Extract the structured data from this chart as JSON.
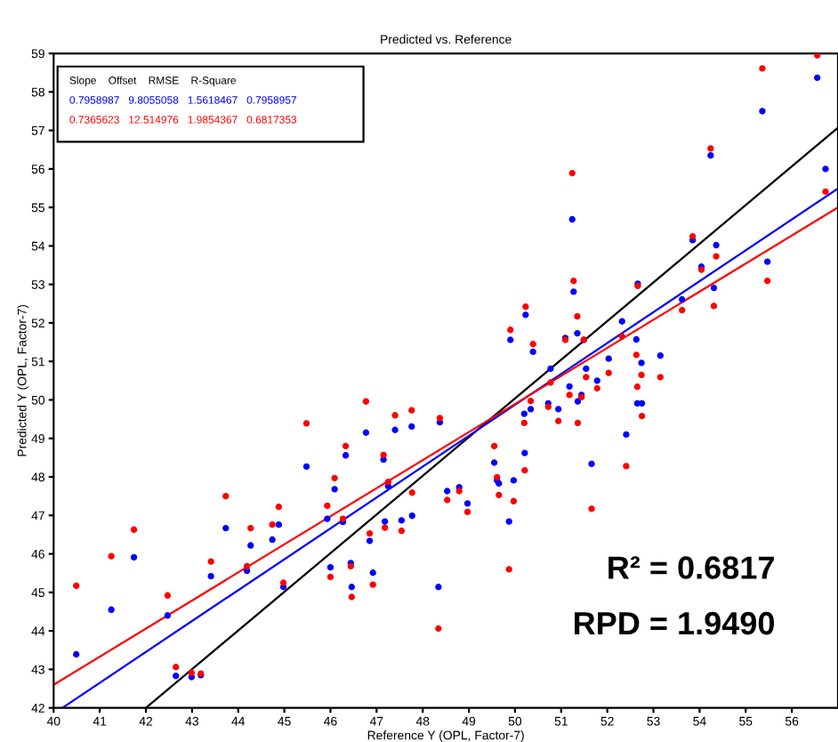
{
  "chart_data": {
    "type": "scatter",
    "title": "Predicted vs. Reference",
    "xlabel": "Reference Y (OPL, Factor-7)",
    "ylabel": "Predicted Y (OPL, Factor-7)",
    "xlim": [
      40,
      57
    ],
    "ylim": [
      42,
      59
    ],
    "xticks": [
      40,
      41,
      42,
      43,
      44,
      45,
      46,
      47,
      48,
      49,
      50,
      51,
      52,
      53,
      54,
      55,
      56
    ],
    "yticks": [
      42,
      43,
      44,
      45,
      46,
      47,
      48,
      49,
      50,
      51,
      52,
      53,
      54,
      55,
      56,
      57,
      58,
      59
    ],
    "grid": false,
    "legend": false,
    "x": [
      40.49,
      41.25,
      41.74,
      42.47,
      42.65,
      42.99,
      43.19,
      43.41,
      43.73,
      44.19,
      44.27,
      44.74,
      44.88,
      44.98,
      45.48,
      45.93,
      46.0,
      46.09,
      46.27,
      46.33,
      46.44,
      46.46,
      46.77,
      46.85,
      46.92,
      47.15,
      47.25,
      47.4,
      47.18,
      47.54,
      47.76,
      47.77,
      48.34,
      48.37,
      48.53,
      48.79,
      48.97,
      49.55,
      49.61,
      49.65,
      49.87,
      49.97,
      49.9,
      50.2,
      50.21,
      50.23,
      50.34,
      50.39,
      50.72,
      50.77,
      50.94,
      51.09,
      51.18,
      51.24,
      51.27,
      51.35,
      51.36,
      51.44,
      51.49,
      51.54,
      51.66,
      51.78,
      52.03,
      52.32,
      52.41,
      52.63,
      52.66,
      52.65,
      52.74,
      52.75,
      53.15,
      53.62,
      53.85,
      54.04,
      54.24,
      54.36,
      54.31,
      55.36,
      55.47,
      56.55,
      56.73
    ],
    "series": [
      {
        "marker": "circle",
        "color": "#0000ff",
        "values": [
          43.39,
          44.55,
          45.91,
          44.4,
          42.83,
          42.8,
          42.85,
          45.42,
          46.67,
          45.56,
          46.22,
          46.37,
          46.76,
          45.14,
          48.27,
          46.91,
          45.65,
          47.68,
          46.83,
          48.56,
          45.76,
          45.14,
          49.15,
          46.34,
          45.51,
          48.45,
          47.76,
          49.22,
          46.84,
          46.87,
          49.31,
          46.99,
          45.14,
          49.42,
          47.63,
          47.73,
          47.31,
          48.37,
          47.91,
          47.83,
          46.84,
          47.91,
          51.56,
          49.64,
          48.62,
          52.21,
          49.76,
          51.25,
          49.91,
          50.81,
          49.76,
          51.61,
          50.35,
          54.69,
          52.81,
          51.73,
          49.96,
          50.13,
          51.56,
          50.81,
          48.34,
          50.5,
          51.07,
          52.04,
          49.1,
          51.57,
          53.02,
          49.91,
          50.96,
          49.91,
          51.15,
          52.61,
          54.15,
          53.46,
          56.35,
          54.02,
          52.91,
          57.5,
          53.59,
          58.37,
          56.0
        ]
      },
      {
        "marker": "circle",
        "color": "#ff0000",
        "values": [
          45.17,
          45.94,
          46.63,
          44.92,
          43.06,
          42.91,
          42.89,
          45.8,
          47.5,
          45.68,
          46.67,
          46.76,
          47.22,
          45.25,
          49.39,
          47.25,
          45.4,
          47.97,
          46.91,
          48.8,
          45.68,
          44.88,
          49.96,
          46.53,
          45.2,
          48.57,
          47.87,
          49.6,
          46.68,
          46.6,
          49.73,
          47.59,
          44.06,
          49.53,
          47.4,
          47.63,
          47.09,
          48.8,
          47.99,
          47.53,
          45.6,
          47.37,
          51.82,
          49.4,
          48.17,
          52.42,
          49.97,
          51.45,
          49.82,
          50.45,
          49.45,
          51.56,
          50.13,
          55.89,
          53.09,
          52.17,
          49.4,
          50.07,
          51.56,
          50.59,
          47.17,
          50.3,
          50.7,
          51.65,
          48.28,
          51.17,
          52.96,
          50.34,
          50.65,
          49.58,
          50.59,
          52.33,
          54.25,
          53.38,
          56.53,
          53.73,
          52.44,
          58.61,
          53.09,
          58.95,
          55.41
        ]
      },
      {
        "type": "line",
        "marker": "none",
        "color": "#000000",
        "x": [
          42,
          57
        ],
        "values": [
          42,
          57.07
        ]
      },
      {
        "type": "line",
        "marker": "none",
        "color": "#0000ff",
        "x": [
          40.19,
          57
        ],
        "values": [
          42,
          55.49
        ]
      },
      {
        "type": "line",
        "marker": "none",
        "color": "#ff0000",
        "x": [
          40,
          57
        ],
        "values": [
          42.6,
          55.0
        ]
      }
    ],
    "annotations": [
      "Slope    Offset    RMSE    R-Square",
      "0.7958987   9.8055058   1.5618467   0.7958957",
      "0.7365623   12.514976   1.9854367   0.6817353",
      "R² = 0.6817",
      "RPD = 1.9490"
    ]
  }
}
